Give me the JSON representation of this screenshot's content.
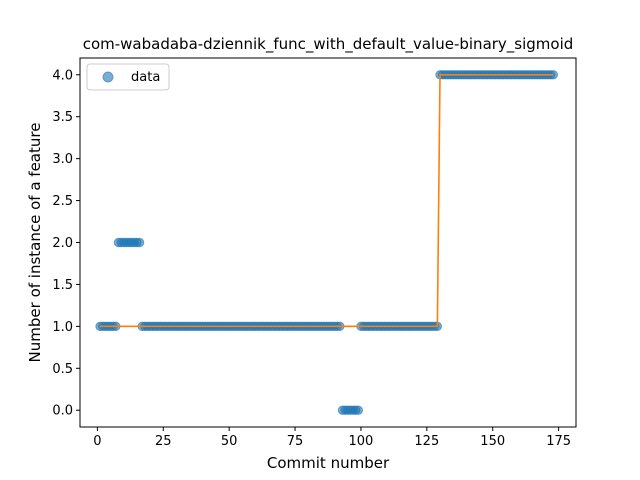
{
  "chart_data": {
    "type": "scatter",
    "title": "com-wabadaba-dziennik_func_with_default_value-binary_sigmoid",
    "xlabel": "Commit number",
    "ylabel": "Number of instance of a feature",
    "xlim": [
      -6.6,
      181.6
    ],
    "ylim": [
      -0.2,
      4.2
    ],
    "xticks": [
      0,
      25,
      50,
      75,
      100,
      125,
      150,
      175
    ],
    "yticks": [
      0.0,
      0.5,
      1.0,
      1.5,
      2.0,
      2.5,
      3.0,
      3.5,
      4.0
    ],
    "ytick_labels": [
      "0.0",
      "0.5",
      "1.0",
      "1.5",
      "2.0",
      "2.5",
      "3.0",
      "3.5",
      "4.0"
    ],
    "legend": {
      "location": "top-left",
      "entries": [
        "data"
      ]
    },
    "grid": false,
    "series": [
      {
        "name": "data",
        "kind": "points",
        "color": "#1f77b4",
        "segments": [
          {
            "x_start": 1,
            "x_end": 7,
            "y": 1
          },
          {
            "x_start": 8,
            "x_end": 16,
            "y": 2
          },
          {
            "x_start": 17,
            "x_end": 92,
            "y": 1
          },
          {
            "x_start": 93,
            "x_end": 99,
            "y": 0
          },
          {
            "x_start": 100,
            "x_end": 129,
            "y": 1
          },
          {
            "x_start": 130,
            "x_end": 173,
            "y": 4
          }
        ]
      },
      {
        "kind": "line",
        "color": "#ff7f0e",
        "x": [
          1,
          129,
          130,
          173
        ],
        "y": [
          1,
          1,
          4,
          4
        ]
      }
    ]
  }
}
